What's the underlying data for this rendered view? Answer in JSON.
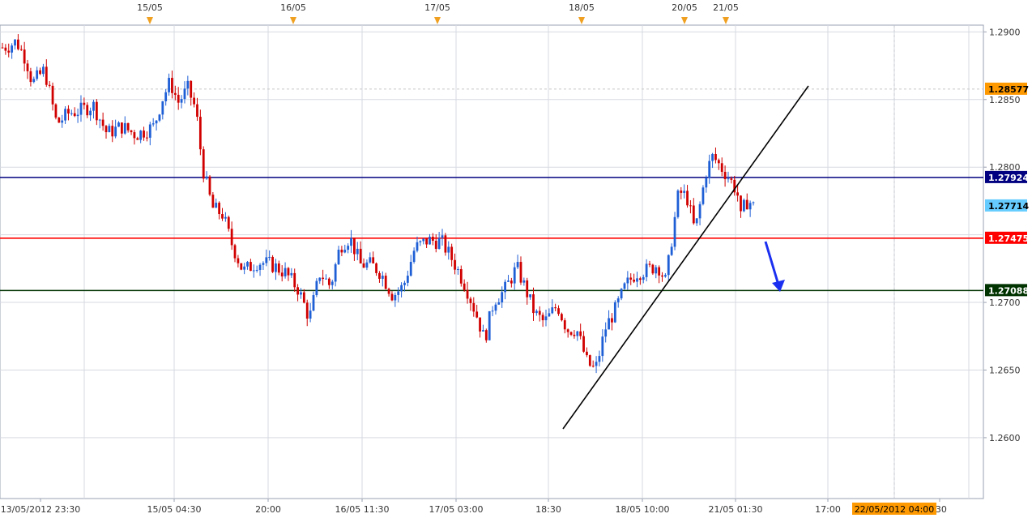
{
  "chart_data": {
    "type": "candlestick",
    "title": "",
    "xlabel": "",
    "ylabel": "",
    "ylim": [
      1.2555,
      1.2905
    ],
    "y_ticks": [
      1.26,
      1.265,
      1.27,
      1.275,
      1.28,
      1.285,
      1.29
    ],
    "y_tick_labels": [
      "1.2600",
      "1.2650",
      "1.2700",
      "",
      "1.2800",
      "1.2850",
      "1.2900"
    ],
    "x_bottom_labels": [
      "13/05/2012 23:30",
      "15/05 04:30",
      "20:00",
      "16/05 11:30",
      "17/05 03:00",
      "18:30",
      "18/05 10:00",
      "21/05 01:30",
      "17:00",
      "22/05/2012 04:00",
      ":30"
    ],
    "x_top_labels": [
      "15/05",
      "16/05",
      "17/05",
      "18/05",
      "20/05",
      "21/05"
    ],
    "cursor_time_label": "22/05/2012 04:00",
    "hlines": [
      {
        "name": "resistance",
        "value": 1.27924,
        "label": "1.27924",
        "color": "#000080",
        "label_bg": "#000080",
        "label_fg": "#ffffff"
      },
      {
        "name": "mid",
        "value": 1.27475,
        "label": "1.27475",
        "color": "#ff0000",
        "label_bg": "#ff0000",
        "label_fg": "#ffffff"
      },
      {
        "name": "support",
        "value": 1.27088,
        "label": "1.27088",
        "color": "#003300",
        "label_bg": "#003300",
        "label_fg": "#ffffff"
      }
    ],
    "price_labels": [
      {
        "name": "high-marker",
        "value": 1.28577,
        "label": "1.28577",
        "bg": "#ff9900",
        "fg": "#000000"
      },
      {
        "name": "current-price",
        "value": 1.27714,
        "label": "1.27714",
        "bg": "#66ccff",
        "fg": "#000000"
      }
    ],
    "dashed_high": 1.28577,
    "trendline": {
      "from": [
        1.2607,
        0
      ],
      "to": [
        1.2856,
        1
      ]
    },
    "up_color": "#1f5fd6",
    "down_color": "#d10000",
    "anchors": [
      [
        0,
        1.2888
      ],
      [
        12,
        1.289
      ],
      [
        20,
        1.2893
      ],
      [
        32,
        1.288
      ],
      [
        40,
        1.2862
      ],
      [
        55,
        1.2872
      ],
      [
        70,
        1.2832
      ],
      [
        85,
        1.284
      ],
      [
        100,
        1.2842
      ],
      [
        115,
        1.2846
      ],
      [
        132,
        1.2825
      ],
      [
        150,
        1.283
      ],
      [
        168,
        1.2824
      ],
      [
        190,
        1.283
      ],
      [
        200,
        1.285
      ],
      [
        210,
        1.2863
      ],
      [
        220,
        1.2848
      ],
      [
        232,
        1.2858
      ],
      [
        242,
        1.2842
      ],
      [
        250,
        1.28
      ],
      [
        262,
        1.277
      ],
      [
        275,
        1.2765
      ],
      [
        285,
        1.2745
      ],
      [
        300,
        1.2723
      ],
      [
        318,
        1.273
      ],
      [
        335,
        1.2728
      ],
      [
        352,
        1.2722
      ],
      [
        368,
        1.271
      ],
      [
        382,
        1.2688
      ],
      [
        395,
        1.2722
      ],
      [
        408,
        1.2712
      ],
      [
        420,
        1.2742
      ],
      [
        432,
        1.2748
      ],
      [
        445,
        1.2728
      ],
      [
        458,
        1.2728
      ],
      [
        470,
        1.2722
      ],
      [
        485,
        1.2705
      ],
      [
        498,
        1.2712
      ],
      [
        512,
        1.274
      ],
      [
        528,
        1.2746
      ],
      [
        545,
        1.2745
      ],
      [
        560,
        1.273
      ],
      [
        575,
        1.2712
      ],
      [
        590,
        1.2688
      ],
      [
        598,
        1.2672
      ],
      [
        610,
        1.2702
      ],
      [
        622,
        1.2708
      ],
      [
        638,
        1.2726
      ],
      [
        650,
        1.2708
      ],
      [
        660,
        1.2692
      ],
      [
        672,
        1.2685
      ],
      [
        688,
        1.2698
      ],
      [
        700,
        1.268
      ],
      [
        712,
        1.268
      ],
      [
        725,
        1.2655
      ],
      [
        735,
        1.265
      ],
      [
        748,
        1.2682
      ],
      [
        760,
        1.2695
      ],
      [
        772,
        1.2712
      ],
      [
        785,
        1.2722
      ],
      [
        800,
        1.2724
      ],
      [
        812,
        1.2728
      ],
      [
        822,
        1.2715
      ],
      [
        830,
        1.275
      ],
      [
        838,
        1.2782
      ],
      [
        848,
        1.2778
      ],
      [
        858,
        1.2752
      ],
      [
        866,
        1.2778
      ],
      [
        872,
        1.2797
      ],
      [
        880,
        1.2808
      ],
      [
        890,
        1.28
      ],
      [
        900,
        1.2792
      ],
      [
        910,
        1.2782
      ],
      [
        915,
        1.276
      ],
      [
        920,
        1.2775
      ],
      [
        926,
        1.2774
      ],
      [
        930,
        1.2771
      ]
    ]
  }
}
